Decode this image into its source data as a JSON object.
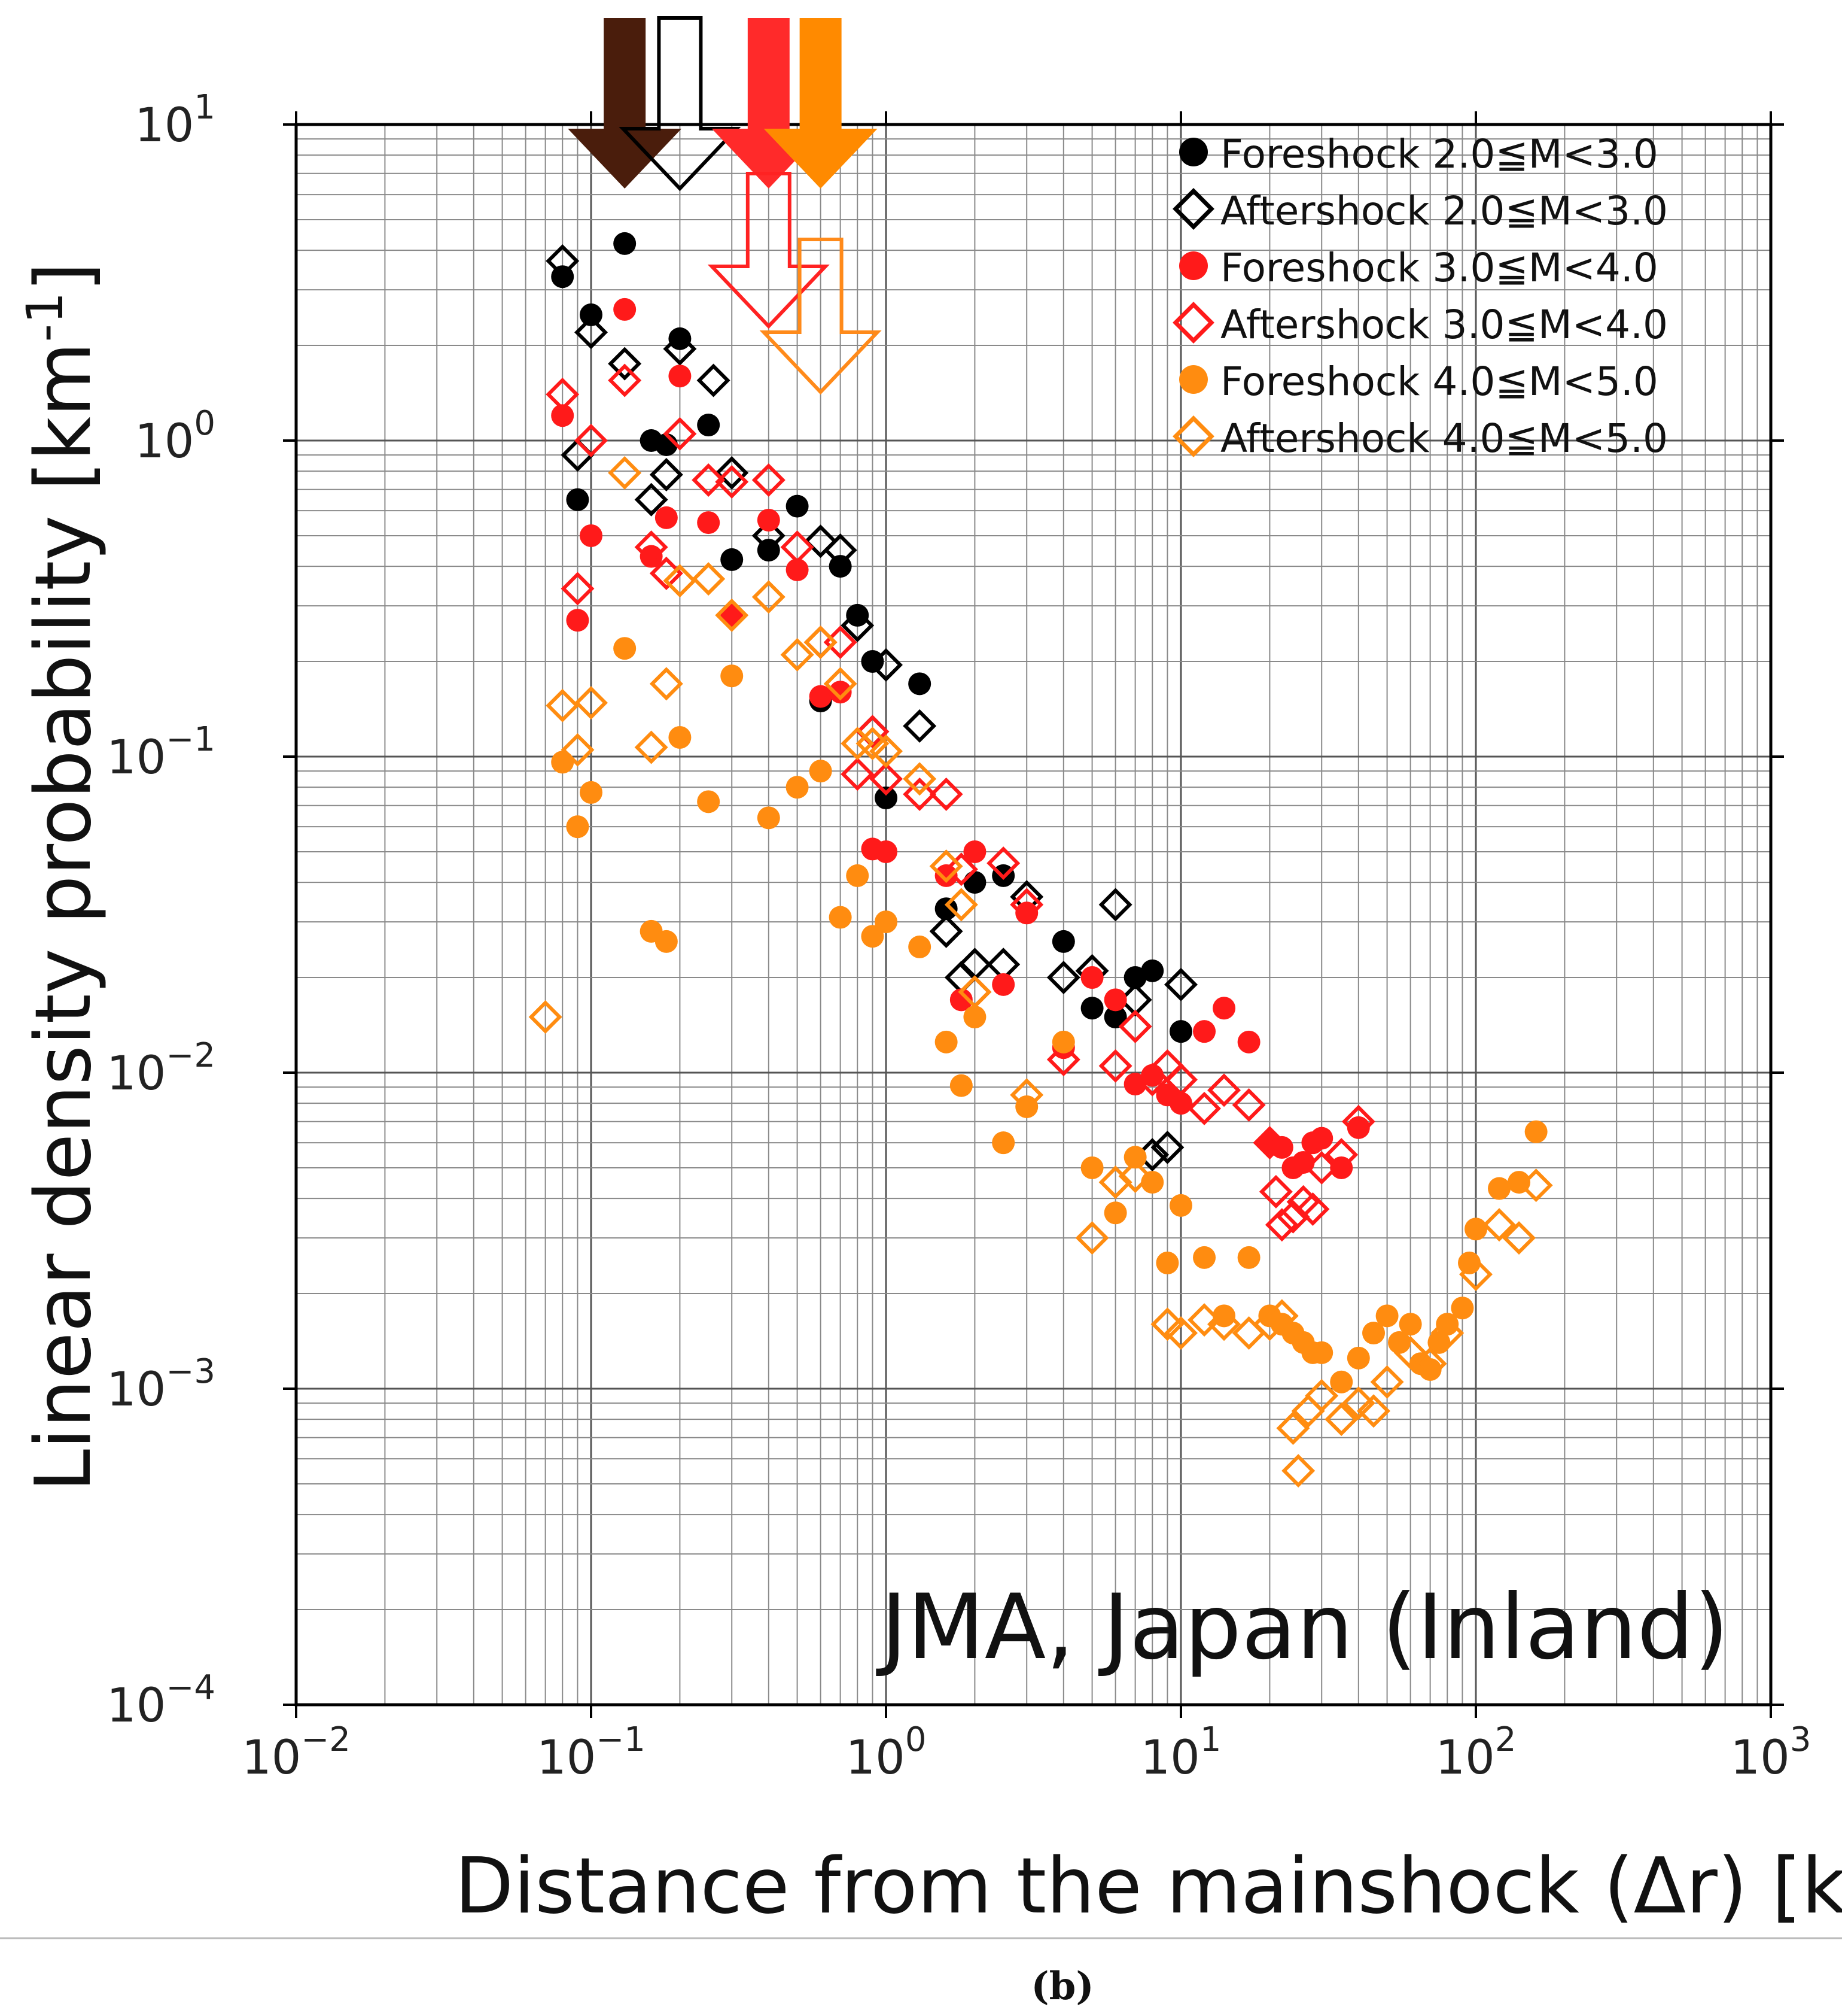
{
  "figure": {
    "panel_label": "(b)"
  },
  "chart_data": {
    "type": "scatter",
    "x_scale": "log",
    "y_scale": "log",
    "xlim": [
      0.01,
      1000
    ],
    "ylim": [
      0.0001,
      10
    ],
    "xlabel": "Distance from the mainshock (Δr) [km]",
    "ylabel": "Linear density probability [km-1]",
    "ylabel_parts": {
      "main": "Linear density probability [km",
      "sup": "-1",
      "end": "]"
    },
    "annotation": "JMA, Japan (Inland)",
    "grid": true,
    "legend_position": "top-right",
    "x_ticks": [
      {
        "base": "10",
        "exp": "−2",
        "value": 0.01
      },
      {
        "base": "10",
        "exp": "−1",
        "value": 0.1
      },
      {
        "base": "10",
        "exp": "0",
        "value": 1
      },
      {
        "base": "10",
        "exp": "1",
        "value": 10
      },
      {
        "base": "10",
        "exp": "2",
        "value": 100
      },
      {
        "base": "10",
        "exp": "3",
        "value": 1000
      }
    ],
    "y_ticks": [
      {
        "base": "10",
        "exp": "1",
        "value": 10
      },
      {
        "base": "10",
        "exp": "0",
        "value": 1
      },
      {
        "base": "10",
        "exp": "−1",
        "value": 0.1
      },
      {
        "base": "10",
        "exp": "−2",
        "value": 0.01
      },
      {
        "base": "10",
        "exp": "−3",
        "value": 0.001
      },
      {
        "base": "10",
        "exp": "−4",
        "value": 0.0001
      }
    ],
    "arrows": [
      {
        "series": "Foreshock 2.0≦M<3.0",
        "x": 0.13,
        "style": "filled",
        "color": "#4a1d0c",
        "tier": 0
      },
      {
        "series": "Aftershock 2.0≦M<3.0",
        "x": 0.2,
        "style": "outline",
        "color": "#000000",
        "tier": 0
      },
      {
        "series": "Foreshock 3.0≦M<4.0",
        "x": 0.4,
        "style": "filled",
        "color": "#ff2a2a",
        "tier": 0
      },
      {
        "series": "Foreshock 4.0≦M<5.0",
        "x": 0.6,
        "style": "filled",
        "color": "#ff8a00",
        "tier": 0
      },
      {
        "series": "Aftershock 3.0≦M<4.0",
        "x": 0.4,
        "style": "outline",
        "color": "#ff2222",
        "tier": 1
      },
      {
        "series": "Aftershock 4.0≦M<5.0",
        "x": 0.6,
        "style": "outline",
        "color": "#ff8a1a",
        "tier": 2
      }
    ],
    "series": [
      {
        "name": "Foreshock 2.0≦M<3.0",
        "marker": "circle",
        "filled": true,
        "color": "#000000",
        "points": [
          [
            0.08,
            3.3
          ],
          [
            0.1,
            2.5
          ],
          [
            0.13,
            4.2
          ],
          [
            0.2,
            2.1
          ],
          [
            0.16,
            1.0
          ],
          [
            0.18,
            0.97
          ],
          [
            0.25,
            1.12
          ],
          [
            0.09,
            0.65
          ],
          [
            0.3,
            0.42
          ],
          [
            0.4,
            0.45
          ],
          [
            0.5,
            0.62
          ],
          [
            0.7,
            0.4
          ],
          [
            0.8,
            0.28
          ],
          [
            0.9,
            0.2
          ],
          [
            1.3,
            0.17
          ],
          [
            0.6,
            0.15
          ],
          [
            1.0,
            0.074
          ],
          [
            1.6,
            0.033
          ],
          [
            2.0,
            0.04
          ],
          [
            2.5,
            0.042
          ],
          [
            4.0,
            0.026
          ],
          [
            5.0,
            0.016
          ],
          [
            6.0,
            0.015
          ],
          [
            7.0,
            0.02
          ],
          [
            8.0,
            0.021
          ],
          [
            10.0,
            0.0135
          ]
        ]
      },
      {
        "name": "Aftershock 2.0≦M<3.0",
        "marker": "diamond",
        "filled": false,
        "color": "#000000",
        "points": [
          [
            0.08,
            3.7
          ],
          [
            0.1,
            2.2
          ],
          [
            0.13,
            1.75
          ],
          [
            0.2,
            1.95
          ],
          [
            0.26,
            1.55
          ],
          [
            0.09,
            0.9
          ],
          [
            0.16,
            0.65
          ],
          [
            0.18,
            0.78
          ],
          [
            0.3,
            0.79
          ],
          [
            0.4,
            0.5
          ],
          [
            0.6,
            0.48
          ],
          [
            0.7,
            0.45
          ],
          [
            0.8,
            0.26
          ],
          [
            1.0,
            0.195
          ],
          [
            0.9,
            0.12
          ],
          [
            1.3,
            0.125
          ],
          [
            1.6,
            0.028
          ],
          [
            1.8,
            0.02
          ],
          [
            2.0,
            0.022
          ],
          [
            2.5,
            0.022
          ],
          [
            3.0,
            0.036
          ],
          [
            4.0,
            0.02
          ],
          [
            5.0,
            0.021
          ],
          [
            6.0,
            0.034
          ],
          [
            7.0,
            0.017
          ],
          [
            10.0,
            0.019
          ],
          [
            8.0,
            0.0055
          ],
          [
            9.0,
            0.0058
          ]
        ]
      },
      {
        "name": "Foreshock 3.0≦M<4.0",
        "marker": "circle",
        "filled": true,
        "color": "#ff1a1a",
        "points": [
          [
            0.08,
            1.2
          ],
          [
            0.09,
            0.27
          ],
          [
            0.1,
            0.5
          ],
          [
            0.13,
            2.6
          ],
          [
            0.16,
            0.43
          ],
          [
            0.18,
            0.57
          ],
          [
            0.2,
            1.6
          ],
          [
            0.25,
            0.55
          ],
          [
            0.3,
            0.28
          ],
          [
            0.4,
            0.56
          ],
          [
            0.5,
            0.39
          ],
          [
            0.6,
            0.155
          ],
          [
            0.7,
            0.16
          ],
          [
            0.9,
            0.051
          ],
          [
            1.0,
            0.05
          ],
          [
            1.6,
            0.042
          ],
          [
            1.8,
            0.017
          ],
          [
            2.0,
            0.05
          ],
          [
            2.5,
            0.019
          ],
          [
            3.0,
            0.032
          ],
          [
            4.0,
            0.012
          ],
          [
            5.0,
            0.02
          ],
          [
            6.0,
            0.017
          ],
          [
            7.0,
            0.0092
          ],
          [
            8.0,
            0.0098
          ],
          [
            9.0,
            0.0085
          ],
          [
            10.0,
            0.008
          ],
          [
            12.0,
            0.0135
          ],
          [
            14.0,
            0.016
          ],
          [
            17.0,
            0.0125
          ],
          [
            20.0,
            0.006
          ],
          [
            22.0,
            0.0058
          ],
          [
            24.0,
            0.005
          ],
          [
            26.0,
            0.0052
          ],
          [
            28.0,
            0.006
          ],
          [
            30.0,
            0.0062
          ],
          [
            35.0,
            0.005
          ],
          [
            40.0,
            0.0067
          ]
        ]
      },
      {
        "name": "Aftershock 3.0≦M<4.0",
        "marker": "diamond",
        "filled": false,
        "color": "#ff1a1a",
        "points": [
          [
            0.08,
            1.4
          ],
          [
            0.09,
            0.34
          ],
          [
            0.1,
            1.0
          ],
          [
            0.13,
            1.55
          ],
          [
            0.16,
            0.46
          ],
          [
            0.18,
            0.38
          ],
          [
            0.2,
            1.05
          ],
          [
            0.25,
            0.75
          ],
          [
            0.3,
            0.74
          ],
          [
            0.4,
            0.75
          ],
          [
            0.5,
            0.46
          ],
          [
            0.6,
            0.23
          ],
          [
            0.7,
            0.23
          ],
          [
            0.8,
            0.088
          ],
          [
            0.9,
            0.12
          ],
          [
            1.0,
            0.085
          ],
          [
            1.3,
            0.076
          ],
          [
            1.6,
            0.076
          ],
          [
            1.8,
            0.044
          ],
          [
            2.0,
            0.018
          ],
          [
            2.5,
            0.046
          ],
          [
            3.0,
            0.034
          ],
          [
            4.0,
            0.011
          ],
          [
            6.0,
            0.0105
          ],
          [
            7.0,
            0.014
          ],
          [
            8.0,
            0.0095
          ],
          [
            9.0,
            0.0105
          ],
          [
            10.0,
            0.0095
          ],
          [
            12.0,
            0.0077
          ],
          [
            14.0,
            0.0088
          ],
          [
            17.0,
            0.0079
          ],
          [
            20.0,
            0.006
          ],
          [
            21.0,
            0.0042
          ],
          [
            22.0,
            0.0033
          ],
          [
            24.0,
            0.0035
          ],
          [
            26.0,
            0.0039
          ],
          [
            28.0,
            0.0037
          ],
          [
            30.0,
            0.005
          ],
          [
            35.0,
            0.0055
          ],
          [
            40.0,
            0.007
          ]
        ]
      },
      {
        "name": "Foreshock 4.0≦M<5.0",
        "marker": "circle",
        "filled": true,
        "color": "#ff8c10",
        "points": [
          [
            0.08,
            0.096
          ],
          [
            0.09,
            0.06
          ],
          [
            0.1,
            0.077
          ],
          [
            0.13,
            0.22
          ],
          [
            0.16,
            0.028
          ],
          [
            0.18,
            0.026
          ],
          [
            0.2,
            0.115
          ],
          [
            0.25,
            0.072
          ],
          [
            0.3,
            0.18
          ],
          [
            0.4,
            0.064
          ],
          [
            0.5,
            0.08
          ],
          [
            0.6,
            0.09
          ],
          [
            0.7,
            0.031
          ],
          [
            0.8,
            0.042
          ],
          [
            0.9,
            0.027
          ],
          [
            1.0,
            0.03
          ],
          [
            1.3,
            0.025
          ],
          [
            1.6,
            0.0125
          ],
          [
            1.8,
            0.0091
          ],
          [
            2.0,
            0.015
          ],
          [
            2.5,
            0.006
          ],
          [
            3.0,
            0.0078
          ],
          [
            4.0,
            0.0125
          ],
          [
            5.0,
            0.005
          ],
          [
            6.0,
            0.0036
          ],
          [
            7.0,
            0.0054
          ],
          [
            8.0,
            0.0045
          ],
          [
            9.0,
            0.0025
          ],
          [
            10.0,
            0.0038
          ],
          [
            12.0,
            0.0026
          ],
          [
            14.0,
            0.0017
          ],
          [
            17.0,
            0.0026
          ],
          [
            20.0,
            0.0017
          ],
          [
            22.0,
            0.0016
          ],
          [
            24.0,
            0.0015
          ],
          [
            26.0,
            0.0014
          ],
          [
            28.0,
            0.0013
          ],
          [
            30.0,
            0.0013
          ],
          [
            35.0,
            0.00105
          ],
          [
            40.0,
            0.00125
          ],
          [
            45.0,
            0.0015
          ],
          [
            50.0,
            0.0017
          ],
          [
            55.0,
            0.0014
          ],
          [
            60.0,
            0.0016
          ],
          [
            65.0,
            0.0012
          ],
          [
            70.0,
            0.00115
          ],
          [
            75.0,
            0.0014
          ],
          [
            80.0,
            0.0016
          ],
          [
            90.0,
            0.0018
          ],
          [
            95.0,
            0.0025
          ],
          [
            100.0,
            0.0032
          ],
          [
            120.0,
            0.0043
          ],
          [
            140.0,
            0.0045
          ],
          [
            160.0,
            0.0065
          ]
        ]
      },
      {
        "name": "Aftershock 4.0≦M<5.0",
        "marker": "diamond",
        "filled": false,
        "color": "#ff8c10",
        "points": [
          [
            0.07,
            0.015
          ],
          [
            0.08,
            0.145
          ],
          [
            0.09,
            0.105
          ],
          [
            0.1,
            0.148
          ],
          [
            0.13,
            0.79
          ],
          [
            0.16,
            0.107
          ],
          [
            0.18,
            0.17
          ],
          [
            0.2,
            0.36
          ],
          [
            0.25,
            0.365
          ],
          [
            0.3,
            0.28
          ],
          [
            0.4,
            0.32
          ],
          [
            0.5,
            0.21
          ],
          [
            0.6,
            0.23
          ],
          [
            0.7,
            0.17
          ],
          [
            0.8,
            0.11
          ],
          [
            0.9,
            0.11
          ],
          [
            1.0,
            0.104
          ],
          [
            1.3,
            0.085
          ],
          [
            1.6,
            0.045
          ],
          [
            1.8,
            0.034
          ],
          [
            2.0,
            0.018
          ],
          [
            3.0,
            0.0085
          ],
          [
            5.0,
            0.003
          ],
          [
            6.0,
            0.0045
          ],
          [
            7.0,
            0.0047
          ],
          [
            9.0,
            0.0016
          ],
          [
            10.0,
            0.0015
          ],
          [
            12.0,
            0.00165
          ],
          [
            14.0,
            0.0016
          ],
          [
            17.0,
            0.0015
          ],
          [
            20.0,
            0.0016
          ],
          [
            22.0,
            0.0017
          ],
          [
            24.0,
            0.00075
          ],
          [
            25.0,
            0.00055
          ],
          [
            27.0,
            0.00085
          ],
          [
            30.0,
            0.00095
          ],
          [
            35.0,
            0.0008
          ],
          [
            40.0,
            0.0009
          ],
          [
            45.0,
            0.00085
          ],
          [
            50.0,
            0.00105
          ],
          [
            60.0,
            0.0013
          ],
          [
            70.0,
            0.0012
          ],
          [
            80.0,
            0.0015
          ],
          [
            100.0,
            0.0023
          ],
          [
            120.0,
            0.0033
          ],
          [
            140.0,
            0.003
          ],
          [
            160.0,
            0.0044
          ]
        ]
      }
    ]
  }
}
